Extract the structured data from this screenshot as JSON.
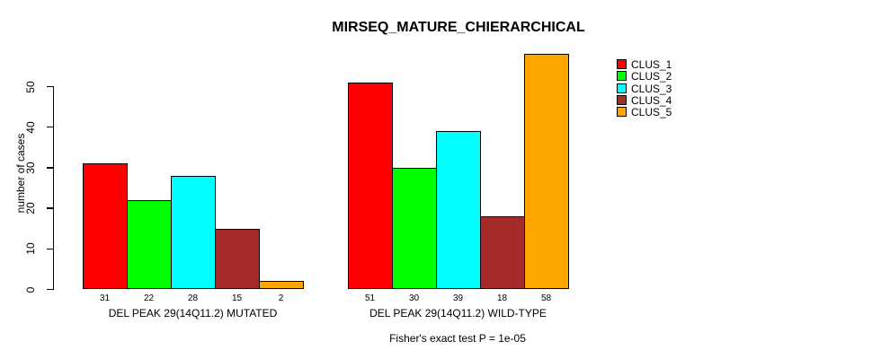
{
  "chart_data": {
    "type": "bar",
    "title": "MIRSEQ_MATURE_CHIERARCHICAL",
    "ylabel": "number of cases",
    "xlabel": "",
    "annotation": "Fisher's exact test P = 1e-05",
    "groups": [
      {
        "label": "DEL PEAK 29(14Q11.2) MUTATED",
        "values": [
          31,
          22,
          28,
          15,
          2
        ]
      },
      {
        "label": "DEL PEAK 29(14Q11.2) WILD-TYPE",
        "values": [
          51,
          30,
          39,
          18,
          58
        ]
      }
    ],
    "series": [
      {
        "name": "CLUS_1",
        "color": "#FF0000"
      },
      {
        "name": "CLUS_2",
        "color": "#00FF00"
      },
      {
        "name": "CLUS_3",
        "color": "#00FFFF"
      },
      {
        "name": "CLUS_4",
        "color": "#A52A2A"
      },
      {
        "name": "CLUS_5",
        "color": "#FFA500"
      }
    ],
    "yticks": [
      0,
      10,
      20,
      30,
      40,
      50
    ],
    "ylim": [
      0,
      58
    ],
    "grid": false,
    "legend_position": "top-right",
    "bar_values_shown": true,
    "bar_border_color": "#000000",
    "background": "#FFFFFF"
  }
}
